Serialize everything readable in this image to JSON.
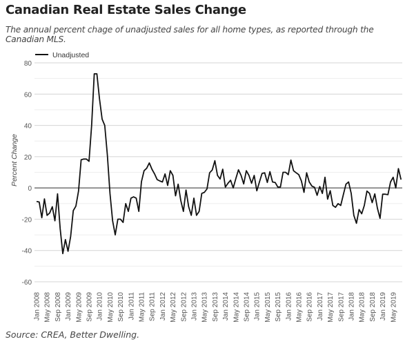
{
  "title": "Canadian Real Estate Sales Change",
  "subtitle": "The annual percent chage of unadjusted sales for all home types, as reported through the Canadian MLS.",
  "source": "Source: CREA, Better Dwelling.",
  "chart_data": {
    "type": "line",
    "ylabel": "Percent Change",
    "xlabel": "",
    "ylim": [
      -60,
      80
    ],
    "yticks": [
      80,
      60,
      40,
      20,
      0,
      -20,
      -40,
      -60
    ],
    "grid": true,
    "legend": "top-left",
    "x_tick_labels": [
      "Jan 2008",
      "May 2008",
      "Sep 2008",
      "Jan 2009",
      "May 2009",
      "Sep 2009",
      "Jan 2010",
      "May 2010",
      "Sep 2010",
      "Jan 2011",
      "May 2011",
      "Sep 2011",
      "Jan 2012",
      "May 2012",
      "Sep 2012",
      "Jan 2013",
      "May 2013",
      "Sep 2013",
      "Jan 2014",
      "May 2014",
      "Sep 2014",
      "Jan 2015",
      "May 2015",
      "Sep 2015",
      "Jan 2016",
      "May 2016",
      "Sep 2016",
      "Jan 2017",
      "May 2017",
      "Sep 2017",
      "Jan 2018",
      "May 2018",
      "Sep 2018",
      "Jan 2019",
      "May 2019"
    ],
    "x": [
      "Jan 2008",
      "Feb 2008",
      "Mar 2008",
      "Apr 2008",
      "May 2008",
      "Jun 2008",
      "Jul 2008",
      "Aug 2008",
      "Sep 2008",
      "Oct 2008",
      "Nov 2008",
      "Dec 2008",
      "Jan 2009",
      "Feb 2009",
      "Mar 2009",
      "Apr 2009",
      "May 2009",
      "Jun 2009",
      "Jul 2009",
      "Aug 2009",
      "Sep 2009",
      "Oct 2009",
      "Nov 2009",
      "Dec 2009",
      "Jan 2010",
      "Feb 2010",
      "Mar 2010",
      "Apr 2010",
      "May 2010",
      "Jun 2010",
      "Jul 2010",
      "Aug 2010",
      "Sep 2010",
      "Oct 2010",
      "Nov 2010",
      "Dec 2010",
      "Jan 2011",
      "Feb 2011",
      "Mar 2011",
      "Apr 2011",
      "May 2011",
      "Jun 2011",
      "Jul 2011",
      "Aug 2011",
      "Sep 2011",
      "Oct 2011",
      "Nov 2011",
      "Dec 2011",
      "Jan 2012",
      "Feb 2012",
      "Mar 2012",
      "Apr 2012",
      "May 2012",
      "Jun 2012",
      "Jul 2012",
      "Aug 2012",
      "Sep 2012",
      "Oct 2012",
      "Nov 2012",
      "Dec 2012",
      "Jan 2013",
      "Feb 2013",
      "Mar 2013",
      "Apr 2013",
      "May 2013",
      "Jun 2013",
      "Jul 2013",
      "Aug 2013",
      "Sep 2013",
      "Oct 2013",
      "Nov 2013",
      "Dec 2013",
      "Jan 2014",
      "Feb 2014",
      "Mar 2014",
      "Apr 2014",
      "May 2014",
      "Jun 2014",
      "Jul 2014",
      "Aug 2014",
      "Sep 2014",
      "Oct 2014",
      "Nov 2014",
      "Dec 2014",
      "Jan 2015",
      "Feb 2015",
      "Mar 2015",
      "Apr 2015",
      "May 2015",
      "Jun 2015",
      "Jul 2015",
      "Aug 2015",
      "Sep 2015",
      "Oct 2015",
      "Nov 2015",
      "Dec 2015",
      "Jan 2016",
      "Feb 2016",
      "Mar 2016",
      "Apr 2016",
      "May 2016",
      "Jun 2016",
      "Jul 2016",
      "Aug 2016",
      "Sep 2016",
      "Oct 2016",
      "Nov 2016",
      "Dec 2016",
      "Jan 2017",
      "Feb 2017",
      "Mar 2017",
      "Apr 2017",
      "May 2017",
      "Jun 2017",
      "Jul 2017",
      "Aug 2017",
      "Sep 2017",
      "Oct 2017",
      "Nov 2017",
      "Dec 2017",
      "Jan 2018",
      "Feb 2018",
      "Mar 2018",
      "Apr 2018",
      "May 2018",
      "Jun 2018",
      "Jul 2018",
      "Aug 2018",
      "Sep 2018",
      "Oct 2018",
      "Nov 2018",
      "Dec 2018",
      "Jan 2019",
      "Feb 2019",
      "Mar 2019",
      "Apr 2019",
      "May 2019",
      "Jun 2019",
      "Jul 2019",
      "Aug 2019"
    ],
    "series": [
      {
        "name": "Unadjusted",
        "color": "#111111",
        "values": [
          -8.7,
          -9,
          -19,
          -7,
          -17.5,
          -16,
          -12,
          -21,
          -3.8,
          -26,
          -42,
          -33,
          -40.5,
          -31,
          -14.5,
          -11.6,
          -2,
          18,
          18.5,
          18.5,
          17,
          40,
          73,
          73,
          57,
          44,
          40,
          21,
          -3.5,
          -21,
          -30,
          -20,
          -20,
          -22,
          -10,
          -15,
          -6.5,
          -5.7,
          -6.5,
          -15,
          4,
          11,
          12.6,
          16,
          12,
          9,
          5.3,
          4.5,
          3.8,
          9,
          1.6,
          11,
          8,
          -5,
          2.4,
          -8,
          -15,
          -1.3,
          -12,
          -17.5,
          -6.5,
          -17.5,
          -15,
          -3.5,
          -2.8,
          -0.6,
          9.7,
          11.5,
          17.4,
          8,
          5.7,
          12,
          0.6,
          3,
          4.9,
          0,
          6,
          11.6,
          8,
          2.6,
          11,
          8,
          3,
          8,
          -1.8,
          3.8,
          9.3,
          9.7,
          3.5,
          10.4,
          3.8,
          3.5,
          0.6,
          0.6,
          10,
          10,
          8.5,
          17.8,
          11,
          9.7,
          8.5,
          4.5,
          -2.8,
          9.7,
          3.8,
          1.2,
          0.4,
          -4.7,
          0.9,
          -3.5,
          6.8,
          -7.2,
          -1.8,
          -11.2,
          -12.4,
          -10,
          -11.2,
          -4.3,
          2.4,
          3.8,
          -3.5,
          -17.5,
          -22.6,
          -13.8,
          -16.5,
          -11.2,
          -2,
          -3.5,
          -9.4,
          -3.8,
          -13,
          -19.4,
          -4,
          -4,
          -4.3,
          3.8,
          6.8,
          0,
          12.4,
          5.3
        ]
      }
    ]
  }
}
